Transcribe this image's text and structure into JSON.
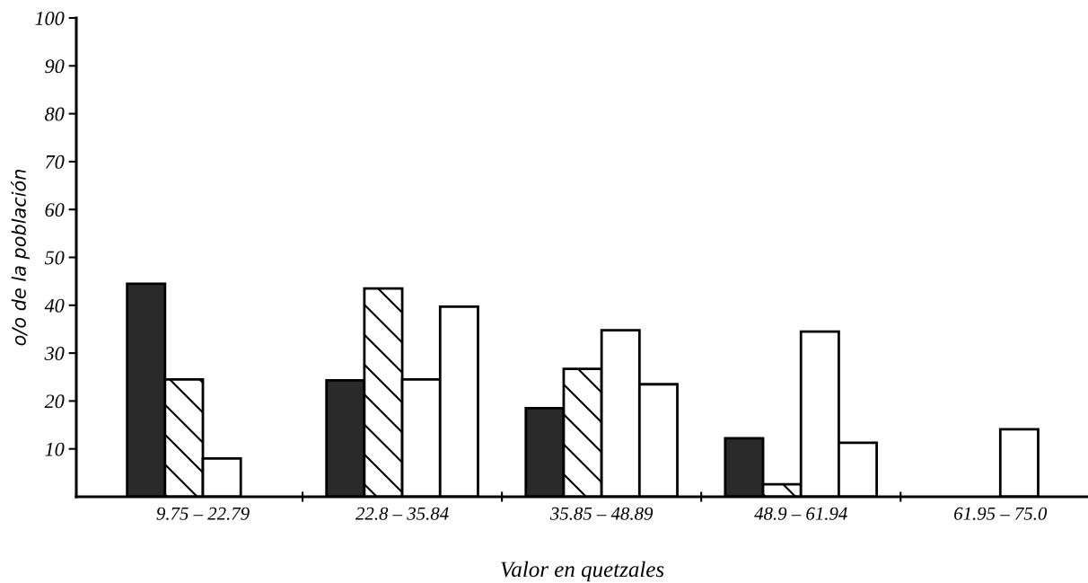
{
  "chart_data": {
    "type": "bar",
    "xlabel": "Valor en quetzales",
    "ylabel": "o/o de la población",
    "categories": [
      "9.75 – 22.79",
      "22.8 – 35.84",
      "35.85 – 48.89",
      "48.9 – 61.94",
      "61.95 – 75.0"
    ],
    "series": [
      {
        "color": "#2a2a2a",
        "values": [
          44.5,
          24.3,
          18.5,
          12.2,
          null
        ]
      },
      {
        "color": "#000000",
        "values": [
          24.5,
          43.5,
          26.7,
          2.6,
          null
        ]
      },
      {
        "color": "#ffffff",
        "values": [
          8,
          24.5,
          34.8,
          34.5,
          14.1
        ]
      },
      {
        "color": "#ffffff",
        "values": [
          null,
          39.7,
          23.5,
          11.3,
          null
        ]
      }
    ],
    "ylim": [
      0,
      100
    ],
    "yticks": [
      10,
      20,
      30,
      40,
      50,
      60,
      70,
      80,
      90,
      100
    ],
    "grid": false,
    "legend": false
  }
}
